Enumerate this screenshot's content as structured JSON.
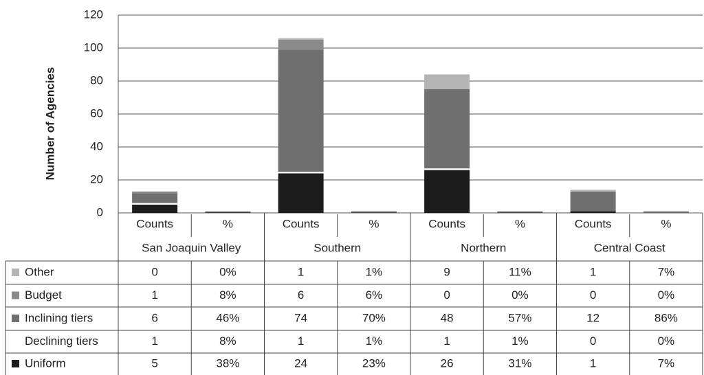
{
  "chart_data": {
    "type": "bar",
    "stacked": true,
    "y_label": "Number of Agencies",
    "categories": [
      "Counts",
      "%",
      "Counts",
      "%",
      "Counts",
      "%",
      "Counts",
      "%"
    ],
    "groups": [
      "San Joaquin Valley",
      "Southern",
      "Northern",
      "Central Coast"
    ],
    "ylim": [
      0,
      120
    ],
    "yticks": [
      0,
      20,
      40,
      60,
      80,
      100,
      120
    ],
    "grid": true,
    "series": [
      {
        "name": "Other",
        "color": "#b5b5b5",
        "values": [
          0,
          0,
          1,
          0.01,
          9,
          0.11,
          1,
          0.07
        ],
        "value_labels": [
          "0",
          "0%",
          "1",
          "1%",
          "9",
          "11%",
          "1",
          "7%"
        ]
      },
      {
        "name": "Budget",
        "color": "#8a8a8a",
        "values": [
          1,
          0.08,
          6,
          0.06,
          0,
          0,
          0,
          0
        ],
        "value_labels": [
          "1",
          "8%",
          "6",
          "6%",
          "0",
          "0%",
          "0",
          "0%"
        ]
      },
      {
        "name": "Inclining tiers",
        "color": "#6f6f6f",
        "values": [
          6,
          0.46,
          74,
          0.7,
          48,
          0.57,
          12,
          0.86
        ],
        "value_labels": [
          "6",
          "46%",
          "74",
          "70%",
          "48",
          "57%",
          "12",
          "86%"
        ]
      },
      {
        "name": "Declining tiers",
        "color": "#ffffff",
        "values": [
          1,
          0.08,
          1,
          0.01,
          1,
          0.01,
          0,
          0
        ],
        "value_labels": [
          "1",
          "8%",
          "1",
          "1%",
          "1",
          "1%",
          "0",
          "0%"
        ]
      },
      {
        "name": "Uniform",
        "color": "#1c1c1c",
        "values": [
          5,
          0.38,
          24,
          0.23,
          26,
          0.31,
          1,
          0.07
        ],
        "value_labels": [
          "5",
          "38%",
          "24",
          "23%",
          "26",
          "31%",
          "1",
          "7%"
        ]
      }
    ]
  }
}
